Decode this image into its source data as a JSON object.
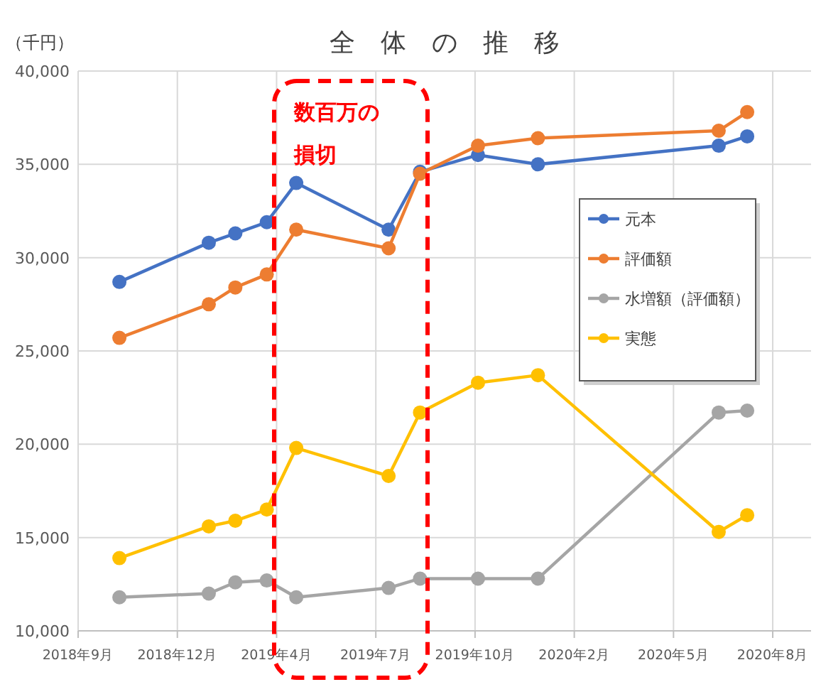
{
  "chart_data": {
    "type": "line",
    "title": "全　体　の　推　移",
    "ylabel": "（千円）",
    "x": [
      "2018-10-27",
      "2019-01-26",
      "2019-02-22",
      "2019-03-26",
      "2019-04-25",
      "2019-07-28",
      "2019-08-29",
      "2019-10-27",
      "2019-12-27",
      "2020-06-28",
      "2020-07-27"
    ],
    "series": [
      {
        "name": "元本",
        "color": "#4472c4",
        "values": [
          28700,
          30800,
          31300,
          31900,
          34000,
          31500,
          34600,
          35500,
          35000,
          36000,
          36500
        ]
      },
      {
        "name": "評価額",
        "color": "#ed7d31",
        "values": [
          25700,
          27500,
          28400,
          29100,
          31500,
          30500,
          34500,
          36000,
          36400,
          36800,
          37800
        ]
      },
      {
        "name": "水増額（評価額）",
        "color": "#a5a5a5",
        "values": [
          11800,
          12000,
          12600,
          12700,
          11800,
          12300,
          12800,
          12800,
          12800,
          21700,
          21800
        ]
      },
      {
        "name": "実態",
        "color": "#ffc000",
        "values": [
          13900,
          15600,
          15900,
          16500,
          19800,
          18300,
          21700,
          23300,
          23700,
          15300,
          16200
        ]
      }
    ],
    "xlim": [
      "2018-09-15",
      "2020-09-30"
    ],
    "xticks": [
      {
        "value": "2018-09-15",
        "label": "2018年9月"
      },
      {
        "value": "2018-12-25",
        "label": "2018年12月"
      },
      {
        "value": "2019-04-05",
        "label": "2019年4月"
      },
      {
        "value": "2019-07-15",
        "label": "2019年7月"
      },
      {
        "value": "2019-10-24",
        "label": "2019年10月"
      },
      {
        "value": "2020-02-02",
        "label": "2020年2月"
      },
      {
        "value": "2020-05-13",
        "label": "2020年5月"
      },
      {
        "value": "2020-08-22",
        "label": "2020年8月"
      }
    ],
    "ylim": [
      10000,
      40000
    ],
    "yticks": [
      {
        "value": 10000,
        "label": "10,000"
      },
      {
        "value": 15000,
        "label": "15,000"
      },
      {
        "value": 20000,
        "label": "20,000"
      },
      {
        "value": 25000,
        "label": "25,000"
      },
      {
        "value": 30000,
        "label": "30,000"
      },
      {
        "value": 35000,
        "label": "35,000"
      },
      {
        "value": 40000,
        "label": "40,000"
      }
    ],
    "annotations": [
      "数百万の損切"
    ],
    "grid": true,
    "legend": "right",
    "marker": "circle",
    "line_style": "solid"
  }
}
